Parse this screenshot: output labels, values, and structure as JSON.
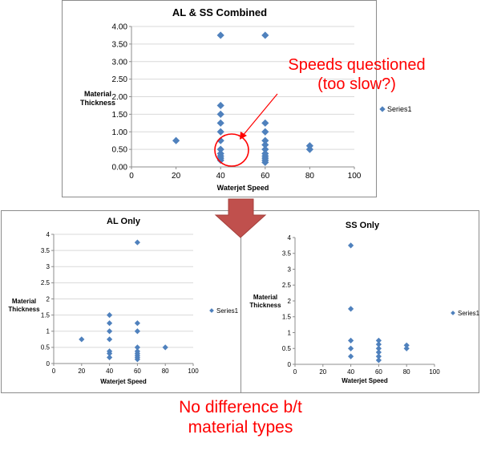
{
  "colors": {
    "marker": "#4f81bd",
    "arrow": "#c0504d",
    "arrow_stroke": "#a5403c",
    "callout": "#ff0000",
    "grid": "#d9d9d9",
    "axis": "#8c8c8c",
    "text": "#000000"
  },
  "callouts": {
    "speeds_line1": "Speeds questioned",
    "speeds_line2": "(too slow?)",
    "nodiff_line1": "No difference b/t",
    "nodiff_line2": "material types"
  },
  "chart_data": [
    {
      "type": "scatter",
      "title": "AL & SS Combined",
      "xlabel": "Waterjet Speed",
      "ylabel": "Material Thickness",
      "xlim": [
        0,
        100
      ],
      "ylim": [
        0,
        4
      ],
      "x_ticks": [
        "0",
        "20",
        "40",
        "60",
        "80",
        "100"
      ],
      "y_ticks": [
        "0.00",
        "0.50",
        "1.00",
        "1.50",
        "2.00",
        "2.50",
        "3.00",
        "3.50",
        "4.00"
      ],
      "grid": "horizontal",
      "legend_position": "right",
      "series": [
        {
          "name": "Series1",
          "x": [
            20,
            40,
            40,
            40,
            40,
            40,
            40,
            40,
            40,
            40,
            40,
            40,
            60,
            60,
            60,
            60,
            60,
            60,
            60,
            60,
            60,
            60,
            60,
            80,
            80
          ],
          "y": [
            0.75,
            0.19,
            0.25,
            0.31,
            0.38,
            0.5,
            0.75,
            1.0,
            1.25,
            1.5,
            1.75,
            3.75,
            0.13,
            0.19,
            0.25,
            0.31,
            0.38,
            0.5,
            0.63,
            0.75,
            1.0,
            1.25,
            3.75,
            0.5,
            0.6
          ]
        }
      ]
    },
    {
      "type": "scatter",
      "title": "AL Only",
      "xlabel": "Waterjet Speed",
      "ylabel": "Material Thickness",
      "xlim": [
        0,
        100
      ],
      "ylim": [
        0,
        4
      ],
      "x_ticks": [
        "0",
        "20",
        "40",
        "60",
        "80",
        "100"
      ],
      "y_ticks": [
        "0",
        "0.5",
        "1",
        "1.5",
        "2",
        "2.5",
        "3",
        "3.5",
        "4"
      ],
      "grid": "horizontal",
      "legend_position": "right",
      "series": [
        {
          "name": "Series1",
          "x": [
            20,
            40,
            40,
            40,
            40,
            40,
            40,
            40,
            60,
            60,
            60,
            60,
            60,
            60,
            60,
            60,
            60,
            80
          ],
          "y": [
            0.75,
            0.19,
            0.31,
            0.38,
            0.75,
            1.0,
            1.25,
            1.5,
            0.13,
            0.19,
            0.25,
            0.31,
            0.38,
            0.5,
            1.0,
            1.25,
            3.75,
            0.5
          ]
        }
      ]
    },
    {
      "type": "scatter",
      "title": "SS Only",
      "xlabel": "Waterjet Speed",
      "ylabel": "Material Thickness",
      "xlim": [
        0,
        100
      ],
      "ylim": [
        0,
        4
      ],
      "x_ticks": [
        "0",
        "20",
        "40",
        "60",
        "80",
        "100"
      ],
      "y_ticks": [
        "0",
        "0.5",
        "1",
        "1.5",
        "2",
        "2.5",
        "3",
        "3.5",
        "4"
      ],
      "grid": "none",
      "legend_position": "right",
      "series": [
        {
          "name": "Series1",
          "x": [
            40,
            40,
            40,
            40,
            40,
            60,
            60,
            60,
            60,
            60,
            60,
            80,
            80
          ],
          "y": [
            0.25,
            0.5,
            0.75,
            1.75,
            3.75,
            0.13,
            0.25,
            0.38,
            0.5,
            0.63,
            0.75,
            0.5,
            0.6
          ]
        }
      ]
    }
  ]
}
